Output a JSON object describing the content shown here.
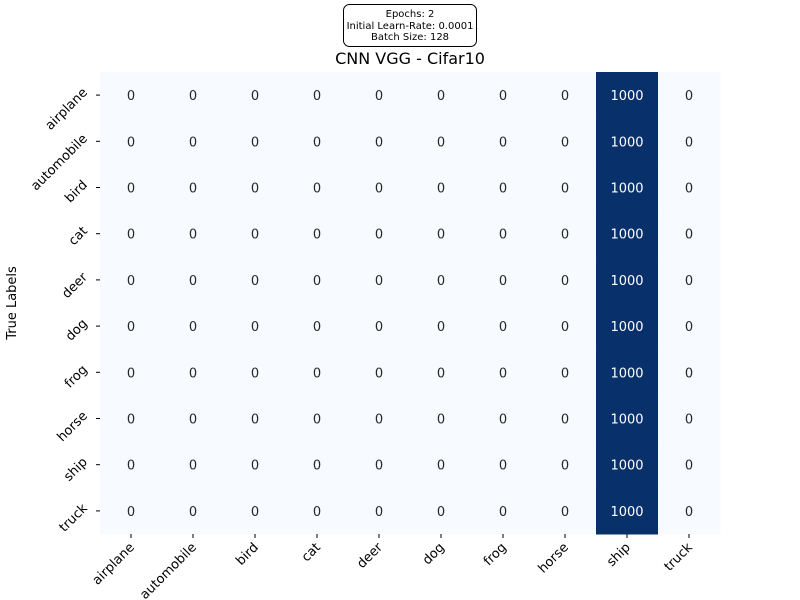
{
  "chart_data": {
    "type": "heatmap",
    "title": "CNN VGG - Cifar10",
    "xlabel": "",
    "ylabel": "True Labels",
    "annotation": [
      "Epochs: 2",
      "Initial Learn-Rate: 0.0001",
      "Batch Size: 128"
    ],
    "x_categories": [
      "airplane",
      "automobile",
      "bird",
      "cat",
      "deer",
      "dog",
      "frog",
      "horse",
      "ship",
      "truck"
    ],
    "y_categories": [
      "airplane",
      "automobile",
      "bird",
      "cat",
      "deer",
      "dog",
      "frog",
      "horse",
      "ship",
      "truck"
    ],
    "values": [
      [
        0,
        0,
        0,
        0,
        0,
        0,
        0,
        0,
        1000,
        0
      ],
      [
        0,
        0,
        0,
        0,
        0,
        0,
        0,
        0,
        1000,
        0
      ],
      [
        0,
        0,
        0,
        0,
        0,
        0,
        0,
        0,
        1000,
        0
      ],
      [
        0,
        0,
        0,
        0,
        0,
        0,
        0,
        0,
        1000,
        0
      ],
      [
        0,
        0,
        0,
        0,
        0,
        0,
        0,
        0,
        1000,
        0
      ],
      [
        0,
        0,
        0,
        0,
        0,
        0,
        0,
        0,
        1000,
        0
      ],
      [
        0,
        0,
        0,
        0,
        0,
        0,
        0,
        0,
        1000,
        0
      ],
      [
        0,
        0,
        0,
        0,
        0,
        0,
        0,
        0,
        1000,
        0
      ],
      [
        0,
        0,
        0,
        0,
        0,
        0,
        0,
        0,
        1000,
        0
      ],
      [
        0,
        0,
        0,
        0,
        0,
        0,
        0,
        0,
        1000,
        0
      ]
    ],
    "value_range": [
      0,
      1000
    ],
    "colormap": {
      "low": "#f7fbff",
      "high": "#08306b"
    },
    "colorbar": false,
    "grid": false
  }
}
